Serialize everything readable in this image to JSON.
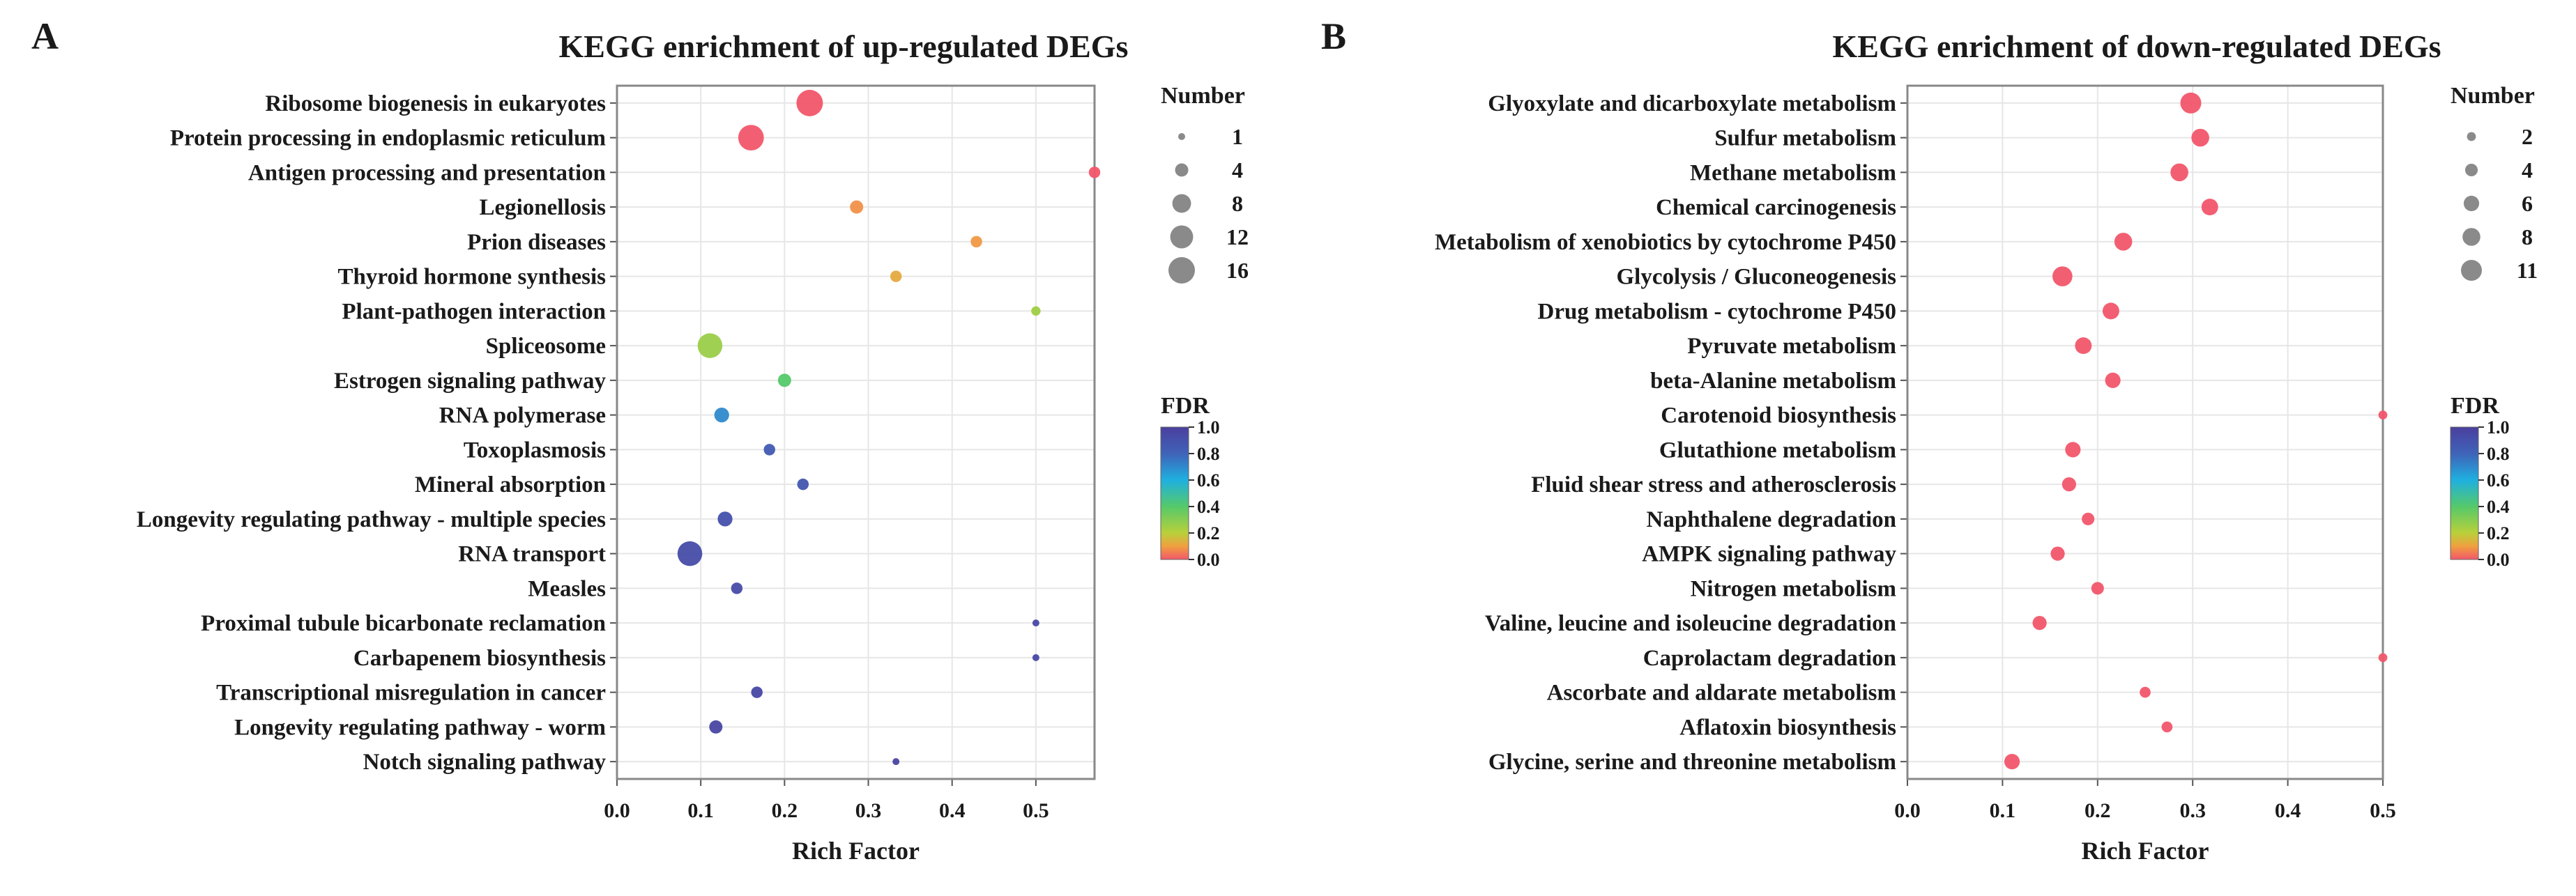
{
  "chart_data": [
    {
      "panel": "A",
      "type": "scatter",
      "title": "KEGG enrichment of up-regulated DEGs",
      "xlabel": "Rich Factor",
      "ylabel": "",
      "xlim": [
        0,
        0.57
      ],
      "xticks": [
        "0.0",
        "0.1",
        "0.2",
        "0.3",
        "0.4",
        "0.5"
      ],
      "grid": true,
      "categories": [
        "Ribosome biogenesis in eukaryotes",
        "Protein processing in endoplasmic reticulum",
        "Antigen processing and presentation",
        "Legionellosis",
        "Prion diseases",
        "Thyroid hormone synthesis",
        "Plant-pathogen interaction",
        "Spliceosome",
        "Estrogen signaling pathway",
        "RNA polymerase",
        "Toxoplasmosis",
        "Mineral absorption",
        "Longevity regulating pathway - multiple species",
        "RNA transport",
        "Measles",
        "Proximal tubule bicarbonate reclamation",
        "Carbapenem biosynthesis",
        "Transcriptional misregulation in cancer",
        "Longevity regulating pathway - worm",
        "Notch signaling pathway"
      ],
      "rich_factor": [
        0.23,
        0.16,
        0.57,
        0.286,
        0.429,
        0.333,
        0.5,
        0.111,
        0.2,
        0.125,
        0.182,
        0.222,
        0.129,
        0.087,
        0.143,
        0.5,
        0.5,
        0.167,
        0.118,
        0.333
      ],
      "number": [
        16,
        15,
        3,
        4,
        3,
        3,
        2,
        14,
        4,
        5,
        3,
        3,
        5,
        14,
        3,
        1,
        1,
        3,
        4,
        1
      ],
      "fdr": [
        0.0,
        0.0,
        0.0,
        0.08,
        0.09,
        0.12,
        0.25,
        0.26,
        0.4,
        0.7,
        0.85,
        0.87,
        0.9,
        0.92,
        0.93,
        0.95,
        0.95,
        0.95,
        0.96,
        0.97
      ],
      "size_legend": {
        "title": "Number",
        "values": [
          1,
          4,
          8,
          12,
          16
        ]
      },
      "color_legend": {
        "title": "FDR",
        "range": [
          0,
          1
        ],
        "ticks": [
          "1.0",
          "0.8",
          "0.6",
          "0.4",
          "0.2",
          "0.0"
        ]
      }
    },
    {
      "panel": "B",
      "type": "scatter",
      "title": "KEGG enrichment of down-regulated DEGs",
      "xlabel": "Rich Factor",
      "ylabel": "",
      "xlim": [
        0,
        0.5
      ],
      "xticks": [
        "0.0",
        "0.1",
        "0.2",
        "0.3",
        "0.4",
        "0.5"
      ],
      "grid": true,
      "categories": [
        "Glyoxylate and dicarboxylate metabolism",
        "Sulfur metabolism",
        "Methane metabolism",
        "Chemical carcinogenesis",
        "Metabolism of xenobiotics by cytochrome P450",
        "Glycolysis / Gluconeogenesis",
        "Drug metabolism - cytochrome P450",
        "Pyruvate metabolism",
        "beta-Alanine metabolism",
        "Carotenoid biosynthesis",
        "Glutathione metabolism",
        "Fluid shear stress and atherosclerosis",
        "Naphthalene degradation",
        "AMPK signaling pathway",
        "Nitrogen metabolism",
        "Valine, leucine and isoleucine degradation",
        "Caprolactam degradation",
        "Ascorbate and aldarate metabolism",
        "Aflatoxin biosynthesis",
        "Glycine, serine and threonine metabolism"
      ],
      "rich_factor": [
        0.298,
        0.308,
        0.286,
        0.318,
        0.227,
        0.163,
        0.214,
        0.185,
        0.216,
        0.5,
        0.174,
        0.17,
        0.19,
        0.158,
        0.2,
        0.139,
        0.5,
        0.25,
        0.273,
        0.11
      ],
      "number": [
        11,
        8,
        8,
        7,
        8,
        10,
        7,
        7,
        6,
        2,
        6,
        5,
        4,
        5,
        4,
        5,
        2,
        3,
        3,
        6
      ],
      "fdr": [
        0.0,
        0.0,
        0.0,
        0.0,
        0.0,
        0.0,
        0.0,
        0.0,
        0.0,
        0.0,
        0.0,
        0.0,
        0.0,
        0.0,
        0.0,
        0.0,
        0.0,
        0.0,
        0.0,
        0.0
      ],
      "size_legend": {
        "title": "Number",
        "values": [
          2,
          4,
          6,
          8,
          11
        ]
      },
      "color_legend": {
        "title": "FDR",
        "range": [
          0,
          1
        ],
        "ticks": [
          "1.0",
          "0.8",
          "0.6",
          "0.4",
          "0.2",
          "0.0"
        ]
      }
    }
  ]
}
